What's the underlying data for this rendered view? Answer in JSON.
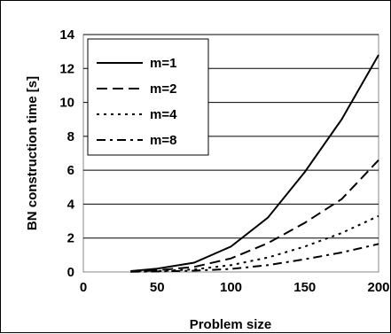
{
  "chart_data": {
    "type": "line",
    "title": "",
    "xlabel": "Problem size",
    "ylabel": "BN construction time [s]",
    "xlim": [
      0,
      200
    ],
    "ylim": [
      0,
      14
    ],
    "xticks": [
      0,
      50,
      100,
      150,
      200
    ],
    "yticks": [
      0,
      2,
      4,
      6,
      8,
      10,
      12,
      14
    ],
    "grid": "horizontal",
    "legend_position": "top-left",
    "series": [
      {
        "name": "m=1",
        "dash": "solid",
        "x": [
          32,
          50,
          75,
          100,
          125,
          150,
          175,
          200
        ],
        "y": [
          0.05,
          0.2,
          0.55,
          1.5,
          3.2,
          5.9,
          9.0,
          12.8
        ]
      },
      {
        "name": "m=2",
        "dash": "long-dash",
        "x": [
          32,
          50,
          75,
          100,
          125,
          150,
          175,
          200
        ],
        "y": [
          0.03,
          0.1,
          0.3,
          0.8,
          1.7,
          2.9,
          4.3,
          6.6
        ]
      },
      {
        "name": "m=4",
        "dash": "dotted",
        "x": [
          32,
          50,
          75,
          100,
          125,
          150,
          175,
          200
        ],
        "y": [
          0.02,
          0.05,
          0.15,
          0.4,
          0.85,
          1.5,
          2.3,
          3.3
        ]
      },
      {
        "name": "m=8",
        "dash": "dash-dot",
        "x": [
          32,
          50,
          75,
          100,
          125,
          150,
          175,
          200
        ],
        "y": [
          0.01,
          0.03,
          0.08,
          0.18,
          0.4,
          0.75,
          1.15,
          1.65
        ]
      }
    ]
  }
}
